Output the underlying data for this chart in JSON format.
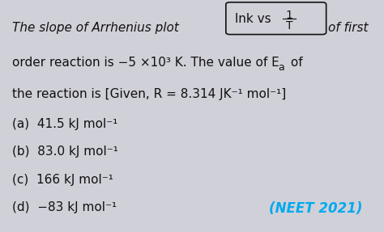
{
  "bg_color": "#d0d0d8",
  "text_color": "#111111",
  "title_line1": "The slope of Arrhenius plot",
  "box_text": "lnk vs ",
  "frac_num": "1",
  "frac_den": "T",
  "title_line1_end": "of first",
  "line2": "order reaction is −5 ×10³ K. The value of E",
  "line2_sub": "a",
  "line2_end": " of",
  "line3": "the reaction is [Given, R = 8.314 JK⁻¹ mol⁻¹]",
  "options": [
    "(a)  41.5 kJ mol⁻¹",
    "(b)  83.0 kJ mol⁻¹",
    "(c)  166 kJ mol⁻¹",
    "(d)  −83 kJ mol⁻¹"
  ],
  "neet_text": "(NEET 2021)",
  "neet_color": "#00aaee",
  "font_size_main": 11,
  "font_size_options": 11,
  "font_size_neet": 12
}
